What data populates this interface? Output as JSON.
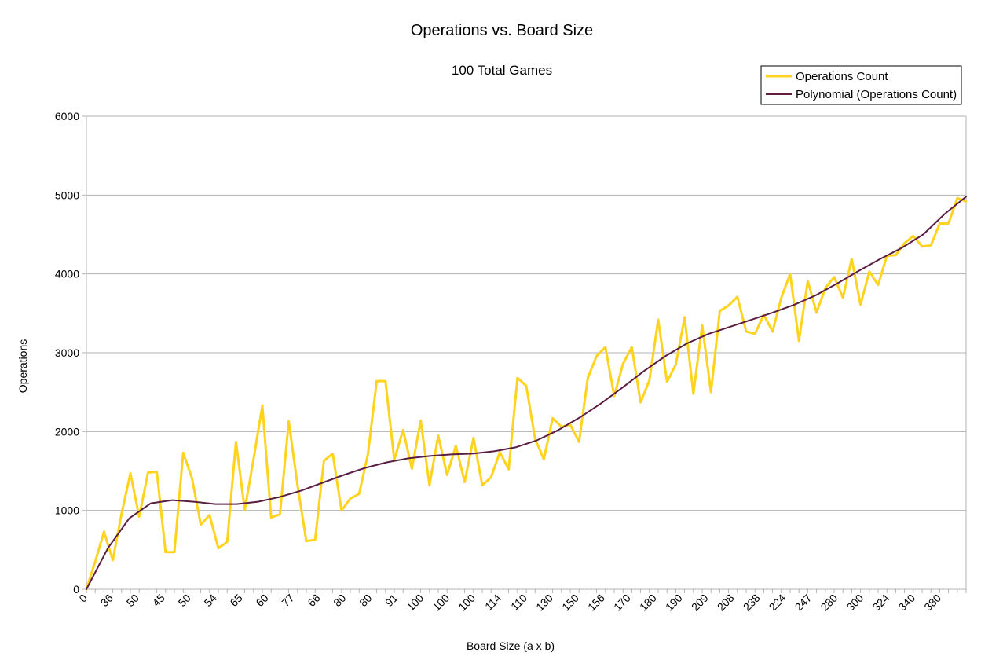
{
  "chart_data": {
    "type": "line",
    "title": "Operations vs. Board Size",
    "subtitle": "100 Total Games",
    "xlabel": "Board Size (a x b)",
    "ylabel": "Operations",
    "ylim": [
      0,
      6000
    ],
    "yticks": [
      "0",
      "1000",
      "2000",
      "3000",
      "4000",
      "5000",
      "6000"
    ],
    "grid": true,
    "legend_position": "top-right",
    "x_tick_labels": [
      "0",
      "36",
      "50",
      "45",
      "50",
      "54",
      "65",
      "60",
      "77",
      "66",
      "80",
      "80",
      "91",
      "100",
      "100",
      "100",
      "114",
      "110",
      "130",
      "150",
      "156",
      "170",
      "180",
      "190",
      "209",
      "208",
      "238",
      "224",
      "247",
      "280",
      "300",
      "324",
      "340",
      "380"
    ],
    "series": [
      {
        "name": "Operations Count",
        "color": "#ffd320",
        "values": [
          0,
          350,
          730,
          370,
          960,
          1470,
          920,
          1480,
          1490,
          470,
          470,
          1730,
          1410,
          820,
          940,
          520,
          600,
          1870,
          1010,
          1650,
          2330,
          910,
          950,
          2130,
          1320,
          610,
          630,
          1630,
          1720,
          1000,
          1150,
          1210,
          1710,
          2640,
          2640,
          1640,
          2020,
          1530,
          2140,
          1320,
          1950,
          1450,
          1820,
          1360,
          1920,
          1320,
          1420,
          1740,
          1520,
          2680,
          2580,
          1910,
          1650,
          2170,
          2060,
          2090,
          1870,
          2680,
          2960,
          3070,
          2450,
          2860,
          3070,
          2370,
          2650,
          3420,
          2630,
          2850,
          3450,
          2480,
          3350,
          2500,
          3530,
          3600,
          3710,
          3270,
          3240,
          3480,
          3270,
          3700,
          4000,
          3150,
          3910,
          3510,
          3820,
          3960,
          3700,
          4190,
          3610,
          4030,
          3860,
          4230,
          4240,
          4390,
          4480,
          4350,
          4360,
          4640,
          4640,
          4960,
          4920
        ]
      },
      {
        "name": "Polynomial (Operations Count)",
        "color": "#5b1e43",
        "type": "trendline",
        "values": [
          0,
          520,
          900,
          1090,
          1130,
          1110,
          1080,
          1080,
          1110,
          1170,
          1250,
          1350,
          1450,
          1540,
          1610,
          1660,
          1690,
          1710,
          1720,
          1750,
          1800,
          1890,
          2020,
          2180,
          2360,
          2560,
          2770,
          2960,
          3120,
          3240,
          3330,
          3420,
          3510,
          3610,
          3730,
          3880,
          4040,
          4190,
          4330,
          4500,
          4760,
          4980
        ]
      }
    ]
  }
}
